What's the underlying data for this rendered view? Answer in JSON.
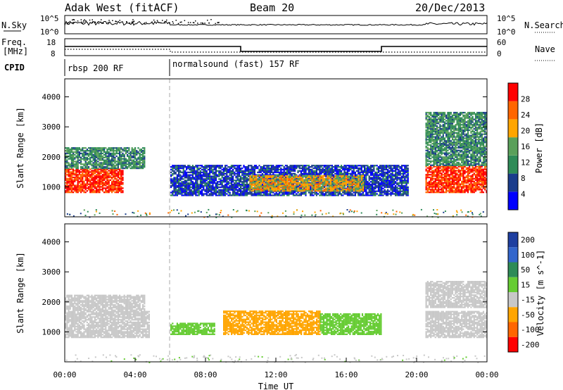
{
  "header": {
    "site": "Adak West (fitACF)",
    "beam": "Beam 20",
    "date": "20/Dec/2013"
  },
  "panels": {
    "nsky": {
      "label": "N.Sky",
      "ticks": [
        "10^5",
        "10^0"
      ],
      "right_label": "N.Search",
      "right_ticks": [
        "10^5",
        "10^0"
      ]
    },
    "freq": {
      "label_line1": "Freq.",
      "label_line2": "[MHz]",
      "ticks": [
        "18",
        "8"
      ],
      "right_label": "Nave",
      "right_ticks": [
        "60",
        "0"
      ]
    },
    "cpid": {
      "label": "CPID",
      "segments": [
        {
          "name": "rbsp 200 RF",
          "start_hour": 0,
          "end_hour": 6
        },
        {
          "name": "normalsound (fast) 157 RF",
          "start_hour": 6,
          "end_hour": 24
        }
      ]
    }
  },
  "chart_data": [
    {
      "type": "heatmap",
      "title": "Power",
      "xlabel": "",
      "ylabel": "Slant Range [km]",
      "xlim": [
        0,
        24
      ],
      "ylim": [
        0,
        4600
      ],
      "yticks": [
        1000,
        2000,
        3000,
        4000
      ],
      "colorbar": {
        "label": "Power [dB]",
        "ticks": [
          4,
          8,
          12,
          16,
          20,
          24,
          28
        ],
        "range": [
          0,
          32
        ]
      },
      "regions": [
        {
          "t_start": 0.0,
          "t_end": 3.3,
          "r_low": 800,
          "r_high": 1600,
          "value": 28
        },
        {
          "t_start": 0.0,
          "t_end": 4.5,
          "r_low": 1600,
          "r_high": 2300,
          "value": 12
        },
        {
          "t_start": 6.0,
          "t_end": 19.5,
          "r_low": 700,
          "r_high": 1700,
          "value": 6
        },
        {
          "t_start": 10.5,
          "t_end": 17.0,
          "r_low": 850,
          "r_high": 1350,
          "value": 20
        },
        {
          "t_start": 20.5,
          "t_end": 24.0,
          "r_low": 800,
          "r_high": 1700,
          "value": 28
        },
        {
          "t_start": 20.5,
          "t_end": 24.0,
          "r_low": 1700,
          "r_high": 3500,
          "value": 12
        }
      ]
    },
    {
      "type": "heatmap",
      "title": "Velocity",
      "xlabel": "Time UT",
      "ylabel": "Slant Range [km]",
      "xlim": [
        0,
        24
      ],
      "ylim": [
        0,
        4600
      ],
      "yticks": [
        1000,
        2000,
        3000,
        4000
      ],
      "xticks": [
        "00:00",
        "04:00",
        "08:00",
        "12:00",
        "16:00",
        "20:00",
        "00:00"
      ],
      "colorbar": {
        "label": "Velocity [m s^-1]",
        "ticks": [
          200,
          100,
          50,
          15,
          -15,
          -50,
          -100,
          -200
        ]
      },
      "regions": [
        {
          "t_start": 0.0,
          "t_end": 4.8,
          "r_low": 800,
          "r_high": 1700,
          "value": 0
        },
        {
          "t_start": 0.0,
          "t_end": 4.5,
          "r_low": 1700,
          "r_high": 2200,
          "value": 0
        },
        {
          "t_start": 6.0,
          "t_end": 8.5,
          "r_low": 900,
          "r_high": 1300,
          "value": 30
        },
        {
          "t_start": 9.0,
          "t_end": 14.5,
          "r_low": 900,
          "r_high": 1700,
          "value": -40
        },
        {
          "t_start": 14.5,
          "t_end": 18.0,
          "r_low": 900,
          "r_high": 1600,
          "value": 30
        },
        {
          "t_start": 20.5,
          "t_end": 24.0,
          "r_low": 800,
          "r_high": 1700,
          "value": 0
        },
        {
          "t_start": 20.5,
          "t_end": 24.0,
          "r_low": 1800,
          "r_high": 2700,
          "value": 0
        }
      ]
    }
  ],
  "colors": {
    "power_scale": [
      "#0000ff",
      "#1a3c8c",
      "#2e8b57",
      "#5aa05a",
      "#ffa500",
      "#ff6600",
      "#ff0000"
    ],
    "velocity_scale": [
      "#1e3fa0",
      "#3366cc",
      "#2e8b57",
      "#66cc33",
      "#c8c8c8",
      "#ffa500",
      "#ff6600",
      "#ff0000"
    ],
    "ground": "#c8c8c8"
  }
}
